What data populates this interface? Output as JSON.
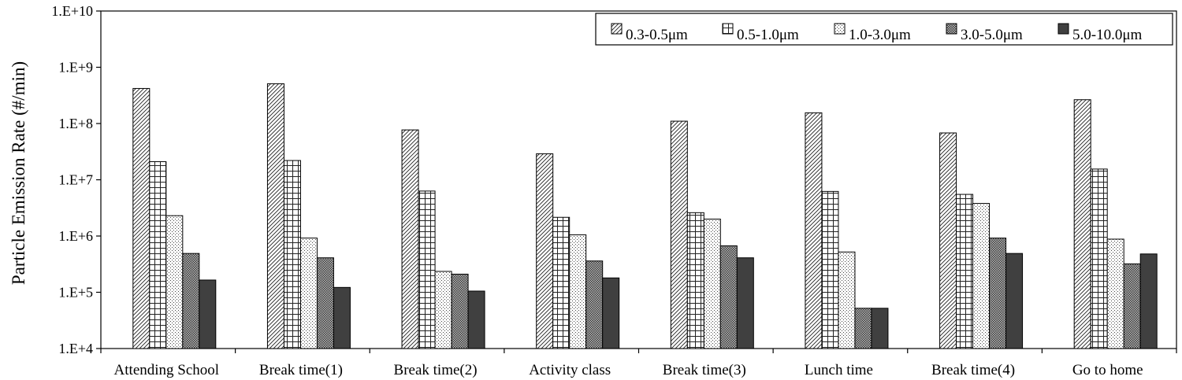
{
  "chart_data": {
    "type": "bar",
    "title": "",
    "xlabel": "",
    "ylabel": "Particle Emission Rate (#/min)",
    "yscale": "log",
    "ylim": [
      10000,
      10000000000
    ],
    "yticks": [
      {
        "value": 10000,
        "label": "1.E+4"
      },
      {
        "value": 100000,
        "label": "1.E+5"
      },
      {
        "value": 1000000,
        "label": "1.E+6"
      },
      {
        "value": 10000000,
        "label": "1.E+7"
      },
      {
        "value": 100000000,
        "label": "1.E+8"
      },
      {
        "value": 1000000000,
        "label": "1.E+9"
      },
      {
        "value": 10000000000,
        "label": "1.E+10"
      }
    ],
    "grid": false,
    "legend_position": "top-right",
    "categories": [
      "Attending School",
      "Break time(1)",
      "Break time(2)",
      "Activity class",
      "Break time(3)",
      "Lunch time",
      "Break time(4)",
      "Go to home"
    ],
    "series": [
      {
        "name": "0.3-0.5μm",
        "pattern": "diagonal-hatch",
        "values": [
          420000000,
          510000000,
          77000000,
          29000000,
          110000000,
          155000000,
          68000000,
          265000000
        ]
      },
      {
        "name": "0.5-1.0μm",
        "pattern": "grid",
        "values": [
          21000000,
          22000000,
          6300000,
          2150000,
          2600000,
          6200000,
          5500000,
          15500000
        ]
      },
      {
        "name": "1.0-3.0μm",
        "pattern": "dots",
        "values": [
          2300000,
          920000,
          235000,
          1050000,
          2000000,
          520000,
          3800000,
          880000
        ]
      },
      {
        "name": "3.0-5.0μm",
        "pattern": "dense-checker",
        "values": [
          490000,
          410000,
          210000,
          360000,
          670000,
          52000,
          920000,
          320000
        ]
      },
      {
        "name": "5.0-10.0μm",
        "pattern": "solid-dark",
        "values": [
          165000,
          122000,
          105000,
          180000,
          410000,
          52000,
          490000,
          480000
        ]
      }
    ]
  }
}
